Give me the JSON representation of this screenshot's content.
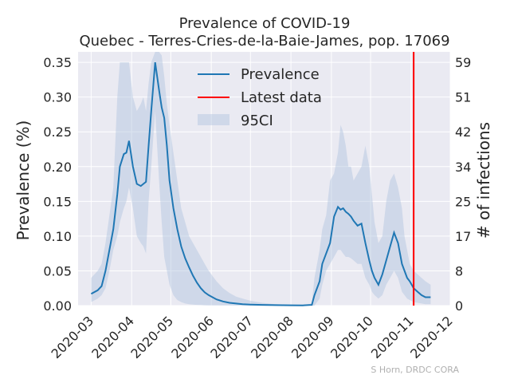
{
  "chart_data": {
    "type": "line",
    "title": "Prevalence of COVID-19",
    "subtitle": "Quebec - Terres-Cries-de-la-Baie-James, pop. 17069",
    "ylabel": "Prevalence (%)",
    "ylabel_right": "# of infections",
    "credit": "S Horn, DRDC CORA",
    "xlim": [
      "2020-02-20",
      "2020-12-01"
    ],
    "ylim": [
      0,
      0.365
    ],
    "x_ticks": [
      "2020-03",
      "2020-04",
      "2020-05",
      "2020-06",
      "2020-07",
      "2020-08",
      "2020-09",
      "2020-10",
      "2020-11",
      "2020-12"
    ],
    "y_ticks": [
      0.0,
      0.05,
      0.1,
      0.15,
      0.2,
      0.25,
      0.3,
      0.35
    ],
    "y_tick_labels": [
      "0.00",
      "0.05",
      "0.10",
      "0.15",
      "0.20",
      "0.25",
      "0.30",
      "0.35"
    ],
    "y2_ticks": [
      0,
      8,
      17,
      25,
      34,
      42,
      51,
      59
    ],
    "grid": true,
    "legend_position": "top-center",
    "legend": [
      "Prevalence",
      "Latest data",
      "95CI"
    ],
    "colors": {
      "line": "#1f77b4",
      "latest": "#ff0000",
      "band": "#b0c4de",
      "plot_bg": "#eaeaf2",
      "grid": "#ffffff"
    },
    "latest_date": "2020-11-03",
    "series": [
      {
        "name": "Prevalence",
        "x": [
          "2020-03-01",
          "2020-03-06",
          "2020-03-09",
          "2020-03-12",
          "2020-03-15",
          "2020-03-18",
          "2020-03-21",
          "2020-03-23",
          "2020-03-26",
          "2020-03-28",
          "2020-03-30",
          "2020-04-02",
          "2020-04-05",
          "2020-04-08",
          "2020-04-10",
          "2020-04-12",
          "2020-04-14",
          "2020-04-16",
          "2020-04-19",
          "2020-04-22",
          "2020-04-24",
          "2020-04-26",
          "2020-04-28",
          "2020-04-30",
          "2020-05-03",
          "2020-05-06",
          "2020-05-09",
          "2020-05-12",
          "2020-05-15",
          "2020-05-18",
          "2020-05-21",
          "2020-05-24",
          "2020-05-27",
          "2020-05-30",
          "2020-06-05",
          "2020-06-10",
          "2020-06-15",
          "2020-06-20",
          "2020-06-25",
          "2020-07-01",
          "2020-07-10",
          "2020-07-20",
          "2020-08-01",
          "2020-08-10",
          "2020-08-17",
          "2020-08-19",
          "2020-08-23",
          "2020-08-25",
          "2020-08-28",
          "2020-08-31",
          "2020-09-03",
          "2020-09-06",
          "2020-09-08",
          "2020-09-10",
          "2020-09-12",
          "2020-09-14",
          "2020-09-16",
          "2020-09-18",
          "2020-09-21",
          "2020-09-24",
          "2020-09-27",
          "2020-09-30",
          "2020-10-02",
          "2020-10-04",
          "2020-10-07",
          "2020-10-10",
          "2020-10-13",
          "2020-10-16",
          "2020-10-19",
          "2020-10-22",
          "2020-10-25",
          "2020-10-27",
          "2020-10-29",
          "2020-10-31",
          "2020-11-03",
          "2020-11-06",
          "2020-11-09",
          "2020-11-12",
          "2020-11-16"
        ],
        "values": [
          0.017,
          0.022,
          0.028,
          0.05,
          0.08,
          0.11,
          0.16,
          0.2,
          0.218,
          0.22,
          0.237,
          0.2,
          0.175,
          0.172,
          0.175,
          0.178,
          0.23,
          0.28,
          0.35,
          0.31,
          0.285,
          0.27,
          0.23,
          0.18,
          0.14,
          0.11,
          0.085,
          0.068,
          0.055,
          0.043,
          0.033,
          0.025,
          0.019,
          0.015,
          0.009,
          0.006,
          0.004,
          0.003,
          0.002,
          0.0015,
          0.001,
          0.0007,
          0.0005,
          0.0003,
          0.001,
          0.015,
          0.035,
          0.06,
          0.075,
          0.09,
          0.128,
          0.142,
          0.138,
          0.14,
          0.135,
          0.132,
          0.128,
          0.122,
          0.115,
          0.118,
          0.09,
          0.065,
          0.05,
          0.04,
          0.03,
          0.045,
          0.065,
          0.085,
          0.105,
          0.09,
          0.06,
          0.05,
          0.04,
          0.035,
          0.025,
          0.02,
          0.015,
          0.012,
          0.012
        ]
      },
      {
        "name": "95CI",
        "x": [
          "2020-03-01",
          "2020-03-06",
          "2020-03-09",
          "2020-03-12",
          "2020-03-15",
          "2020-03-18",
          "2020-03-21",
          "2020-03-23",
          "2020-03-26",
          "2020-03-28",
          "2020-03-30",
          "2020-04-02",
          "2020-04-05",
          "2020-04-08",
          "2020-04-10",
          "2020-04-12",
          "2020-04-14",
          "2020-04-16",
          "2020-04-19",
          "2020-04-22",
          "2020-04-24",
          "2020-04-26",
          "2020-04-28",
          "2020-04-30",
          "2020-05-03",
          "2020-05-06",
          "2020-05-09",
          "2020-05-12",
          "2020-05-15",
          "2020-05-18",
          "2020-05-21",
          "2020-05-24",
          "2020-05-27",
          "2020-05-30",
          "2020-06-05",
          "2020-06-10",
          "2020-06-15",
          "2020-06-20",
          "2020-06-25",
          "2020-07-01",
          "2020-07-10",
          "2020-07-20",
          "2020-08-01",
          "2020-08-10",
          "2020-08-17",
          "2020-08-19",
          "2020-08-23",
          "2020-08-25",
          "2020-08-28",
          "2020-08-31",
          "2020-09-03",
          "2020-09-06",
          "2020-09-08",
          "2020-09-10",
          "2020-09-12",
          "2020-09-14",
          "2020-09-16",
          "2020-09-18",
          "2020-09-21",
          "2020-09-24",
          "2020-09-27",
          "2020-09-30",
          "2020-10-02",
          "2020-10-04",
          "2020-10-07",
          "2020-10-10",
          "2020-10-13",
          "2020-10-16",
          "2020-10-19",
          "2020-10-22",
          "2020-10-25",
          "2020-10-27",
          "2020-10-29",
          "2020-10-31",
          "2020-11-03",
          "2020-11-06",
          "2020-11-09",
          "2020-11-12",
          "2020-11-16"
        ],
        "lower": [
          0.005,
          0.01,
          0.015,
          0.025,
          0.05,
          0.08,
          0.1,
          0.12,
          0.14,
          0.15,
          0.17,
          0.14,
          0.1,
          0.09,
          0.085,
          0.075,
          0.15,
          0.2,
          0.28,
          0.18,
          0.12,
          0.07,
          0.05,
          0.03,
          0.015,
          0.008,
          0.005,
          0.003,
          0.002,
          0.0015,
          0.001,
          0.0008,
          0.0005,
          0.0003,
          0.0002,
          0.0001,
          0.0001,
          0,
          0,
          0,
          0,
          0,
          0,
          0,
          0,
          0,
          0.01,
          0.03,
          0.05,
          0.06,
          0.07,
          0.08,
          0.08,
          0.075,
          0.07,
          0.07,
          0.068,
          0.065,
          0.06,
          0.06,
          0.04,
          0.03,
          0.02,
          0.015,
          0.01,
          0.015,
          0.03,
          0.04,
          0.05,
          0.04,
          0.02,
          0.015,
          0.01,
          0.008,
          0.005,
          0.004,
          0.003,
          0.002,
          0.002
        ],
        "upper": [
          0.04,
          0.05,
          0.06,
          0.09,
          0.13,
          0.17,
          0.3,
          0.35,
          0.35,
          0.35,
          0.35,
          0.3,
          0.28,
          0.29,
          0.3,
          0.28,
          0.32,
          0.35,
          0.365,
          0.365,
          0.36,
          0.33,
          0.29,
          0.26,
          0.22,
          0.18,
          0.14,
          0.12,
          0.1,
          0.09,
          0.08,
          0.07,
          0.06,
          0.05,
          0.035,
          0.025,
          0.018,
          0.013,
          0.01,
          0.007,
          0.004,
          0.002,
          0.001,
          0.0008,
          0.003,
          0.04,
          0.08,
          0.11,
          0.13,
          0.18,
          0.19,
          0.22,
          0.26,
          0.25,
          0.23,
          0.2,
          0.2,
          0.18,
          0.19,
          0.2,
          0.23,
          0.2,
          0.16,
          0.12,
          0.09,
          0.1,
          0.15,
          0.18,
          0.19,
          0.17,
          0.14,
          0.1,
          0.08,
          0.06,
          0.05,
          0.045,
          0.04,
          0.035,
          0.03
        ]
      }
    ]
  }
}
